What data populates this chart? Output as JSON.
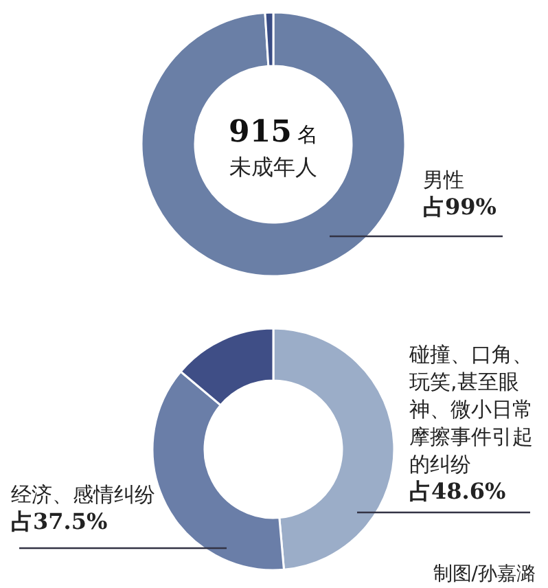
{
  "chart_data": [
    {
      "type": "donut",
      "categories": [
        "男性",
        null
      ],
      "values": [
        99,
        1
      ],
      "colors": [
        "#6a7fa6",
        "#3a4d85"
      ],
      "value_labels": [
        "占99%",
        null
      ],
      "annotations": [
        "915名",
        "未成年人"
      ]
    },
    {
      "type": "donut",
      "categories": [
        "碰撞、口角、玩笑,甚至眼神、微小日常摩擦事件引起的纠纷",
        "经济、感情纠纷",
        null
      ],
      "values": [
        48.6,
        37.5,
        13.9
      ],
      "colors": [
        "#9badc8",
        "#6a7ea8",
        "#3f4e86"
      ],
      "value_labels": [
        "占48.6%",
        "占37.5%",
        null
      ],
      "annotations": [
        "制图/孙嘉潞"
      ]
    }
  ]
}
